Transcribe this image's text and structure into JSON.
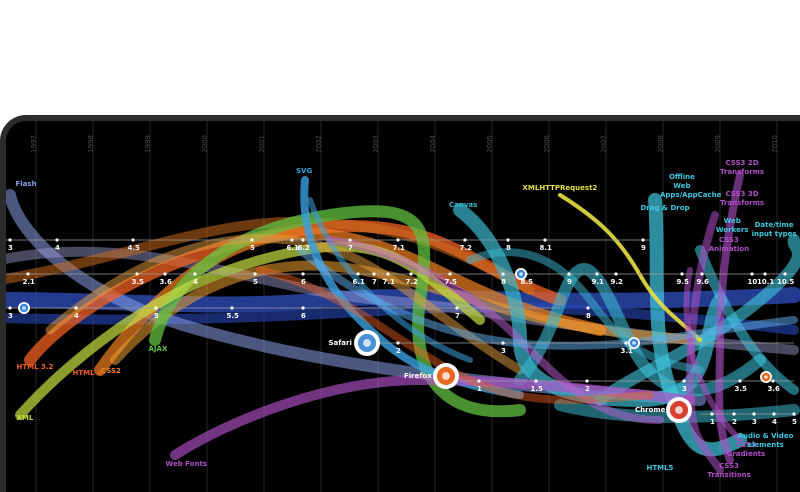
{
  "chart_data": {
    "type": "line",
    "title": "",
    "xlabel": "",
    "ylabel": "",
    "years": [
      "1997",
      "1998",
      "1999",
      "2000",
      "2001",
      "2002",
      "2003",
      "2004",
      "2005",
      "2006",
      "2007",
      "2008",
      "2009",
      "2010"
    ],
    "browsers": [
      {
        "name": "",
        "icon": "internet-explorer-icon",
        "versions": [
          "3",
          "4",
          "4.5",
          "5",
          "6.1",
          "6.2",
          "7",
          "7.1",
          "7.2",
          "8",
          "8.1",
          "9"
        ]
      },
      {
        "name": "",
        "icon": "opera-icon",
        "versions": [
          "2.1",
          "3.5",
          "3.6",
          "4",
          "5",
          "6",
          "6.1",
          "7",
          "7.1",
          "7.2",
          "7.5",
          "8",
          "8.5",
          "9",
          "9.1",
          "9.2",
          "9.5",
          "9.6",
          "10",
          "10.1",
          "10.5"
        ]
      },
      {
        "name": "",
        "icon": "internet-explorer-old-icon",
        "versions": [
          "3",
          "4",
          "5",
          "5.5",
          "6",
          "7",
          "8"
        ]
      },
      {
        "name": "Safari",
        "icon": "safari-icon",
        "versions": [
          "2",
          "3",
          "3.1"
        ]
      },
      {
        "name": "Firefox",
        "icon": "firefox-icon",
        "versions": [
          "1",
          "1.5",
          "2",
          "3",
          "3.5",
          "3.6"
        ]
      },
      {
        "name": "Chrome",
        "icon": "chrome-icon",
        "versions": [
          "1",
          "2",
          "3",
          "4",
          "5"
        ]
      }
    ],
    "technologies": [
      {
        "label": "Flash",
        "color": "#8b9ee8"
      },
      {
        "label": "SVG",
        "color": "#3aa0e0"
      },
      {
        "label": "XMLHTTPRequest2",
        "color": "#e8e040"
      },
      {
        "label": "Canvas",
        "color": "#3ab8d0"
      },
      {
        "label": "Offline Web Apps/AppCache",
        "color": "#40c8e0"
      },
      {
        "label": "Drag & Drop",
        "color": "#40c8e0"
      },
      {
        "label": "CSS3 2D Transforms",
        "color": "#b050c8"
      },
      {
        "label": "CSS3 3D Transforms",
        "color": "#b050c8"
      },
      {
        "label": "Web Workers",
        "color": "#40c8e0"
      },
      {
        "label": "CSS3 Animation",
        "color": "#b050c8"
      },
      {
        "label": "Date/time input types",
        "color": "#40c8e0"
      },
      {
        "label": "HTML 3.2",
        "color": "#f06020"
      },
      {
        "label": "HTML 4",
        "color": "#f06020"
      },
      {
        "label": "CSS2",
        "color": "#f08020"
      },
      {
        "label": "AJAX",
        "color": "#60c040"
      },
      {
        "label": "XML",
        "color": "#c8e040"
      },
      {
        "label": "Web Fonts",
        "color": "#b050c8"
      },
      {
        "label": "HTML5",
        "color": "#40c8e0"
      },
      {
        "label": "CSS3 Gradients",
        "color": "#b050c8"
      },
      {
        "label": "CSS3 Transitions",
        "color": "#b050c8"
      },
      {
        "label": "Audio & Video elements",
        "color": "#40c8e0"
      }
    ]
  }
}
